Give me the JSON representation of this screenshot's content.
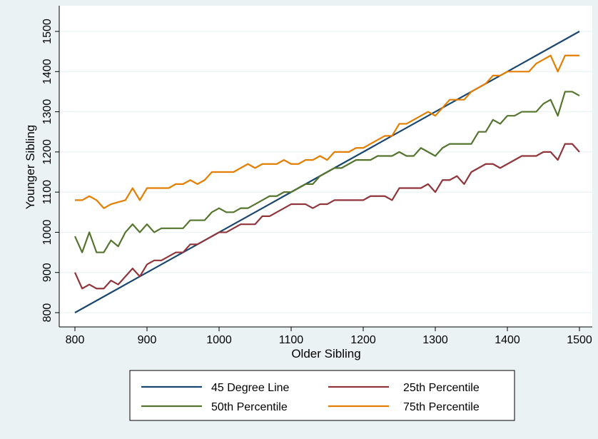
{
  "chart_data": {
    "type": "line",
    "title": "",
    "xlabel": "Older Sibling",
    "ylabel": "Younger Sibling",
    "xlim": [
      800,
      1500
    ],
    "ylim": [
      800,
      1500
    ],
    "x_ticks": [
      800,
      900,
      1000,
      1100,
      1200,
      1300,
      1400,
      1500
    ],
    "y_ticks": [
      800,
      900,
      1000,
      1100,
      1200,
      1300,
      1400,
      1500
    ],
    "grid": true,
    "legend_position": "bottom",
    "x": [
      800,
      810,
      820,
      830,
      840,
      850,
      860,
      870,
      880,
      890,
      900,
      910,
      920,
      930,
      940,
      950,
      960,
      970,
      980,
      990,
      1000,
      1010,
      1020,
      1030,
      1040,
      1050,
      1060,
      1070,
      1080,
      1090,
      1100,
      1110,
      1120,
      1130,
      1140,
      1150,
      1160,
      1170,
      1180,
      1190,
      1200,
      1210,
      1220,
      1230,
      1240,
      1250,
      1260,
      1270,
      1280,
      1290,
      1300,
      1310,
      1320,
      1330,
      1340,
      1350,
      1360,
      1370,
      1380,
      1390,
      1400,
      1410,
      1420,
      1430,
      1440,
      1450,
      1460,
      1470,
      1480,
      1490,
      1500
    ],
    "series": [
      {
        "name": "45 Degree Line",
        "color": "#1a476f",
        "values": [
          800,
          810,
          820,
          830,
          840,
          850,
          860,
          870,
          880,
          890,
          900,
          910,
          920,
          930,
          940,
          950,
          960,
          970,
          980,
          990,
          1000,
          1010,
          1020,
          1030,
          1040,
          1050,
          1060,
          1070,
          1080,
          1090,
          1100,
          1110,
          1120,
          1130,
          1140,
          1150,
          1160,
          1170,
          1180,
          1190,
          1200,
          1210,
          1220,
          1230,
          1240,
          1250,
          1260,
          1270,
          1280,
          1290,
          1300,
          1310,
          1320,
          1330,
          1340,
          1350,
          1360,
          1370,
          1380,
          1390,
          1400,
          1410,
          1420,
          1430,
          1440,
          1450,
          1460,
          1470,
          1480,
          1490,
          1500
        ]
      },
      {
        "name": "25th Percentile",
        "color": "#90353b",
        "values": [
          900,
          860,
          870,
          860,
          860,
          880,
          870,
          890,
          910,
          890,
          920,
          930,
          930,
          940,
          950,
          950,
          970,
          970,
          980,
          990,
          1000,
          1000,
          1010,
          1020,
          1020,
          1020,
          1040,
          1040,
          1050,
          1060,
          1070,
          1070,
          1070,
          1060,
          1070,
          1070,
          1080,
          1080,
          1080,
          1080,
          1080,
          1090,
          1090,
          1090,
          1080,
          1110,
          1110,
          1110,
          1110,
          1120,
          1100,
          1130,
          1130,
          1140,
          1120,
          1150,
          1160,
          1170,
          1170,
          1160,
          1170,
          1180,
          1190,
          1190,
          1190,
          1200,
          1200,
          1180,
          1220,
          1220,
          1200
        ]
      },
      {
        "name": "50th Percentile",
        "color": "#55752f",
        "values": [
          990,
          950,
          1000,
          950,
          950,
          980,
          965,
          1000,
          1020,
          1000,
          1020,
          1000,
          1010,
          1010,
          1010,
          1010,
          1030,
          1030,
          1030,
          1050,
          1060,
          1050,
          1050,
          1060,
          1060,
          1070,
          1080,
          1090,
          1090,
          1100,
          1100,
          1110,
          1120,
          1120,
          1140,
          1150,
          1160,
          1160,
          1170,
          1180,
          1180,
          1180,
          1190,
          1190,
          1190,
          1200,
          1190,
          1190,
          1210,
          1200,
          1190,
          1210,
          1220,
          1220,
          1220,
          1220,
          1250,
          1250,
          1280,
          1270,
          1290,
          1290,
          1300,
          1300,
          1300,
          1320,
          1330,
          1290,
          1350,
          1350,
          1340
        ]
      },
      {
        "name": "75th Percentile",
        "color": "#e37e00",
        "values": [
          1080,
          1080,
          1090,
          1080,
          1060,
          1070,
          1075,
          1080,
          1110,
          1080,
          1110,
          1110,
          1110,
          1110,
          1120,
          1120,
          1130,
          1120,
          1130,
          1150,
          1150,
          1150,
          1150,
          1160,
          1170,
          1160,
          1170,
          1170,
          1170,
          1180,
          1170,
          1170,
          1180,
          1180,
          1190,
          1180,
          1200,
          1200,
          1200,
          1210,
          1210,
          1220,
          1230,
          1240,
          1240,
          1270,
          1270,
          1280,
          1290,
          1300,
          1290,
          1310,
          1330,
          1330,
          1330,
          1350,
          1360,
          1370,
          1390,
          1390,
          1400,
          1400,
          1400,
          1400,
          1420,
          1430,
          1440,
          1400,
          1440,
          1440,
          1440
        ]
      }
    ]
  }
}
